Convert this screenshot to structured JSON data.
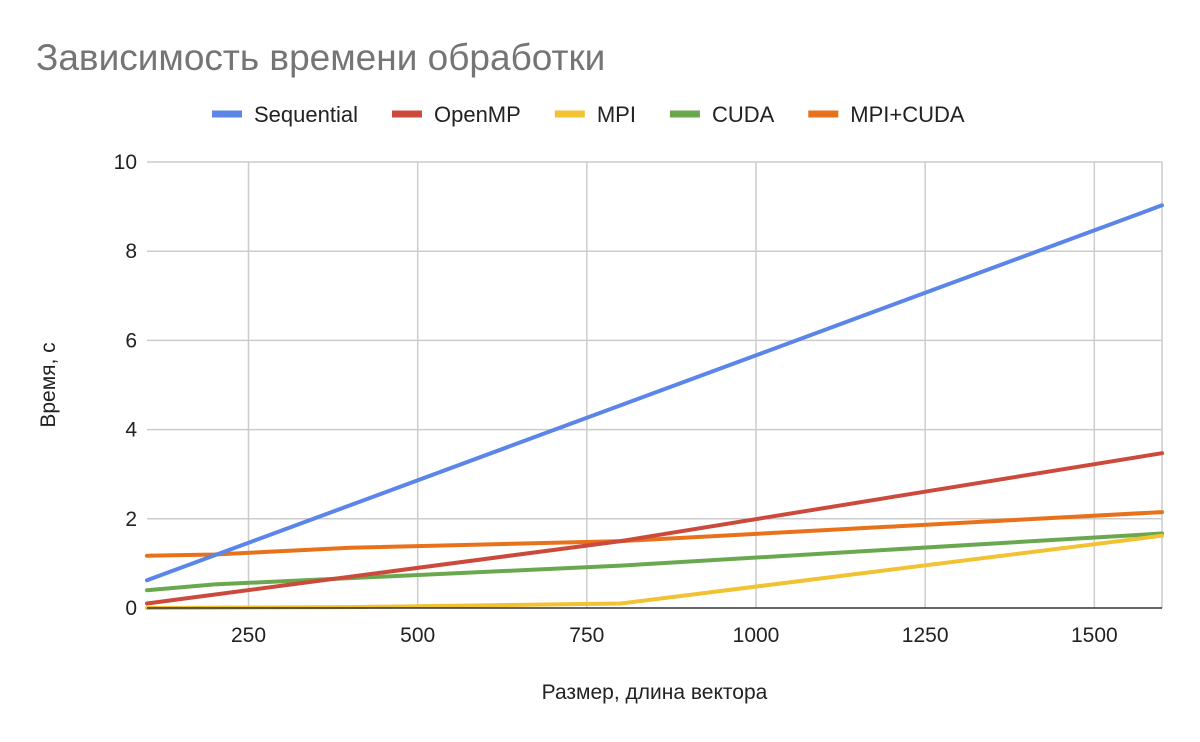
{
  "chart_data": {
    "type": "line",
    "title": "Зависимость времени обработки",
    "xlabel": "Размер, длина вектора",
    "ylabel": "Время, с",
    "xlim": [
      100,
      1600
    ],
    "ylim": [
      0,
      10
    ],
    "x_ticks": [
      250,
      500,
      750,
      1000,
      1250,
      1500
    ],
    "y_ticks": [
      0,
      2,
      4,
      6,
      8,
      10
    ],
    "grid": true,
    "legend_position": "top",
    "series": [
      {
        "name": "Sequential",
        "color": "#5b85e8",
        "points": [
          [
            100,
            0.62
          ],
          [
            1600,
            9.03
          ]
        ]
      },
      {
        "name": "OpenMP",
        "color": "#cc4a3b",
        "points": [
          [
            100,
            0.1
          ],
          [
            800,
            1.5
          ],
          [
            1600,
            3.47
          ]
        ]
      },
      {
        "name": "MPI",
        "color": "#f1c232",
        "points": [
          [
            100,
            0.0
          ],
          [
            400,
            0.02
          ],
          [
            800,
            0.1
          ],
          [
            1600,
            1.62
          ]
        ]
      },
      {
        "name": "CUDA",
        "color": "#6aa84f",
        "points": [
          [
            100,
            0.4
          ],
          [
            200,
            0.53
          ],
          [
            800,
            0.95
          ],
          [
            1600,
            1.67
          ]
        ]
      },
      {
        "name": "MPI+CUDA",
        "color": "#e8711b",
        "points": [
          [
            100,
            1.17
          ],
          [
            200,
            1.2
          ],
          [
            400,
            1.35
          ],
          [
            800,
            1.5
          ],
          [
            1600,
            2.15
          ]
        ]
      }
    ]
  }
}
